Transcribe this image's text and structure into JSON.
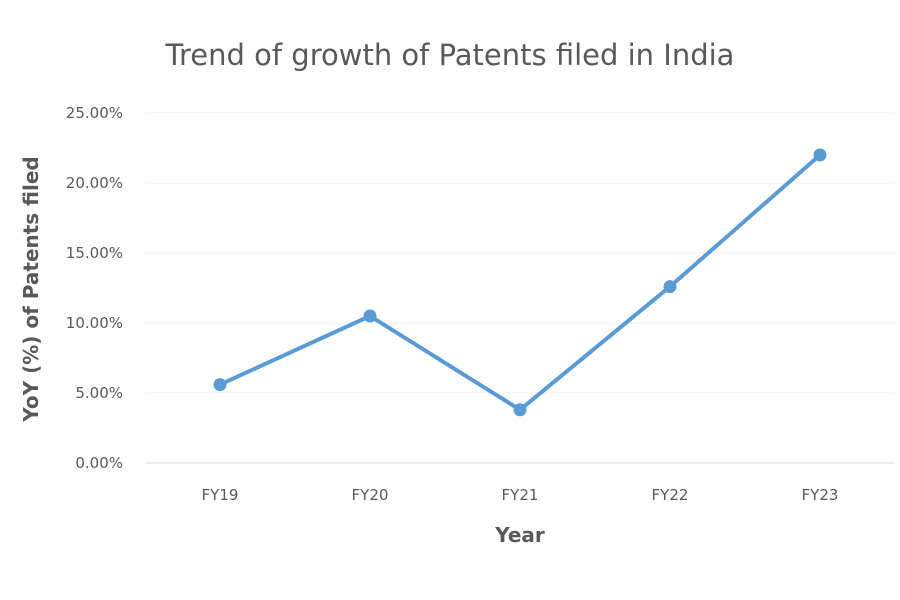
{
  "chart_data": {
    "type": "line",
    "title": "Trend of growth of Patents filed in India",
    "xlabel": "Year",
    "ylabel": "YoY (%) of Patents filed",
    "categories": [
      "FY19",
      "FY20",
      "FY21",
      "FY22",
      "FY23"
    ],
    "series": [
      {
        "values": [
          5.6,
          10.5,
          3.8,
          12.6,
          22.0
        ],
        "color": "#5b9bd5"
      }
    ],
    "ylim": [
      0,
      25
    ],
    "yticks": [
      0,
      5,
      10,
      15,
      20,
      25
    ],
    "ytick_labels": [
      "0.00%",
      "5.00%",
      "10.00%",
      "15.00%",
      "20.00%",
      "25.00%"
    ],
    "grid": true,
    "legend": "none"
  }
}
